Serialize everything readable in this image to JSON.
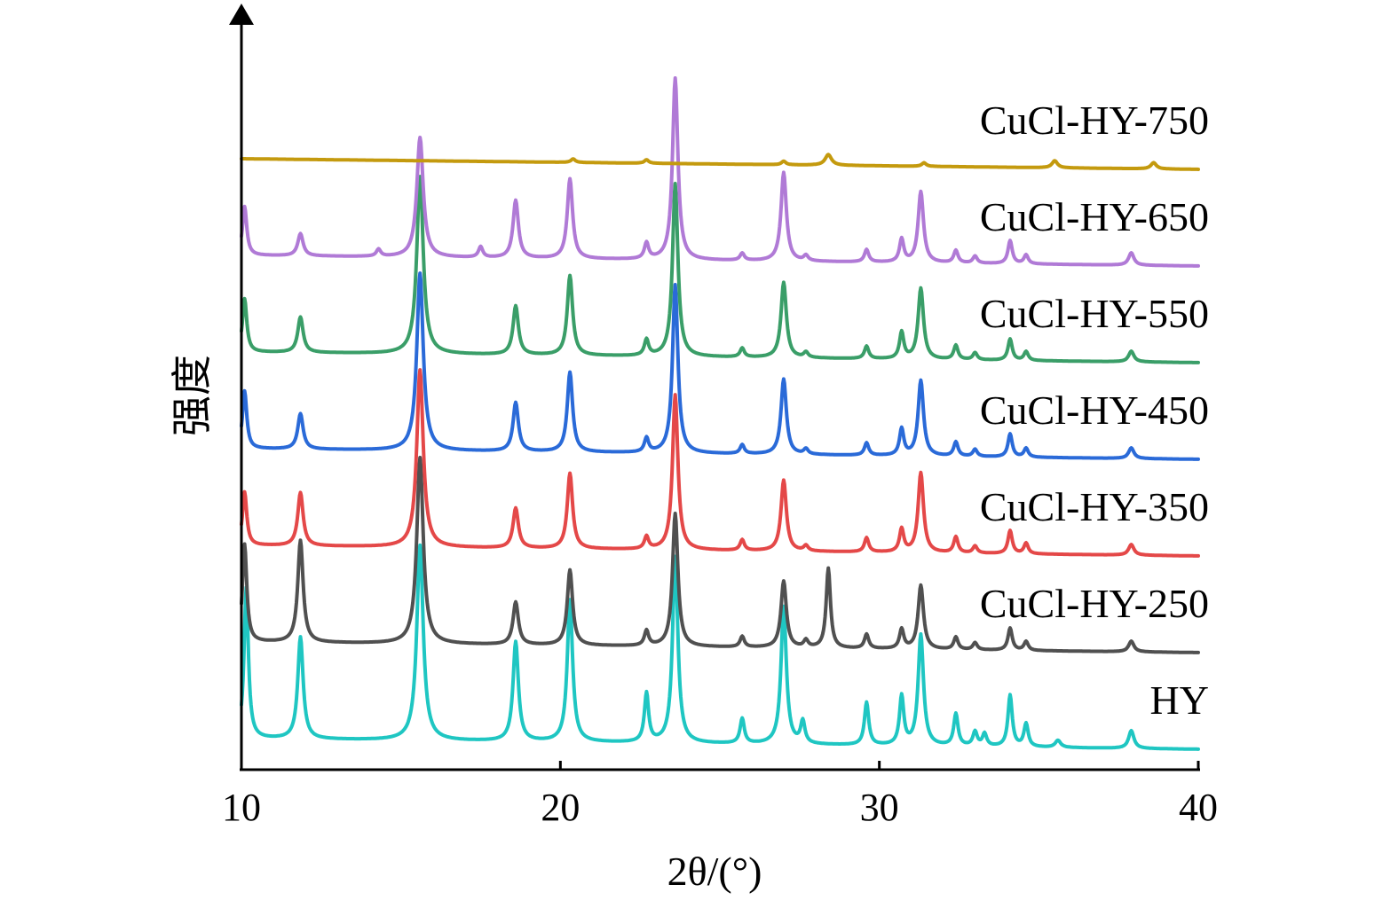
{
  "chart_data": {
    "type": "line",
    "title": "",
    "xlabel": "2θ/(°)",
    "ylabel": "强度",
    "xlim": [
      10,
      40
    ],
    "xticks": [
      10,
      20,
      30,
      40
    ],
    "xtick_labels": [
      "10",
      "20",
      "30",
      "40"
    ],
    "grid": false,
    "legend": "labels at right end of each trace",
    "series": [
      {
        "name": "HY",
        "color": "#1fc6c2",
        "baseline": 0,
        "peaks": [
          [
            10.15,
            170,
            0.08
          ],
          [
            11.85,
            115,
            0.1
          ],
          [
            15.6,
            220,
            0.12
          ],
          [
            18.6,
            112,
            0.1
          ],
          [
            20.3,
            160,
            0.1
          ],
          [
            22.7,
            55,
            0.08
          ],
          [
            23.6,
            210,
            0.1
          ],
          [
            25.7,
            28,
            0.08
          ],
          [
            27.0,
            155,
            0.1
          ],
          [
            27.6,
            25,
            0.08
          ],
          [
            29.6,
            48,
            0.08
          ],
          [
            30.7,
            55,
            0.08
          ],
          [
            31.3,
            125,
            0.1
          ],
          [
            32.4,
            36,
            0.08
          ],
          [
            33.0,
            16,
            0.08
          ],
          [
            33.3,
            14,
            0.08
          ],
          [
            34.1,
            58,
            0.08
          ],
          [
            34.6,
            26,
            0.08
          ],
          [
            35.6,
            8,
            0.1
          ],
          [
            37.9,
            20,
            0.1
          ]
        ]
      },
      {
        "name": "CuCl-HY-250",
        "color": "#505050",
        "baseline": 1,
        "peaks": [
          [
            10.1,
            110,
            0.08
          ],
          [
            11.85,
            115,
            0.1
          ],
          [
            15.6,
            210,
            0.12
          ],
          [
            18.6,
            48,
            0.1
          ],
          [
            20.3,
            85,
            0.1
          ],
          [
            22.7,
            17,
            0.08
          ],
          [
            23.6,
            150,
            0.1
          ],
          [
            25.7,
            12,
            0.08
          ],
          [
            27.0,
            75,
            0.1
          ],
          [
            27.7,
            8,
            0.08
          ],
          [
            28.4,
            90,
            0.08
          ],
          [
            29.6,
            16,
            0.08
          ],
          [
            30.7,
            22,
            0.08
          ],
          [
            31.3,
            72,
            0.1
          ],
          [
            32.4,
            14,
            0.08
          ],
          [
            33.0,
            8,
            0.08
          ],
          [
            34.1,
            25,
            0.08
          ],
          [
            34.6,
            10,
            0.08
          ],
          [
            37.9,
            12,
            0.1
          ]
        ]
      },
      {
        "name": "CuCl-HY-350",
        "color": "#e44848",
        "baseline": 2,
        "peaks": [
          [
            10.1,
            60,
            0.08
          ],
          [
            11.85,
            60,
            0.1
          ],
          [
            15.6,
            200,
            0.12
          ],
          [
            18.6,
            45,
            0.1
          ],
          [
            20.3,
            85,
            0.1
          ],
          [
            22.7,
            14,
            0.08
          ],
          [
            23.6,
            175,
            0.1
          ],
          [
            25.7,
            12,
            0.08
          ],
          [
            27.0,
            80,
            0.1
          ],
          [
            27.7,
            6,
            0.08
          ],
          [
            29.6,
            16,
            0.08
          ],
          [
            30.7,
            26,
            0.08
          ],
          [
            31.3,
            90,
            0.1
          ],
          [
            32.4,
            18,
            0.08
          ],
          [
            33.0,
            8,
            0.08
          ],
          [
            34.1,
            26,
            0.08
          ],
          [
            34.6,
            12,
            0.08
          ],
          [
            37.9,
            12,
            0.1
          ]
        ]
      },
      {
        "name": "CuCl-HY-450",
        "color": "#2a6ad8",
        "baseline": 3,
        "peaks": [
          [
            10.1,
            65,
            0.08
          ],
          [
            11.85,
            40,
            0.1
          ],
          [
            15.6,
            200,
            0.12
          ],
          [
            18.6,
            55,
            0.1
          ],
          [
            20.3,
            90,
            0.1
          ],
          [
            22.7,
            16,
            0.08
          ],
          [
            23.6,
            190,
            0.1
          ],
          [
            25.7,
            10,
            0.08
          ],
          [
            27.0,
            85,
            0.1
          ],
          [
            27.7,
            6,
            0.08
          ],
          [
            29.6,
            14,
            0.08
          ],
          [
            30.7,
            30,
            0.08
          ],
          [
            31.3,
            85,
            0.1
          ],
          [
            32.4,
            16,
            0.08
          ],
          [
            33.0,
            8,
            0.08
          ],
          [
            34.1,
            26,
            0.08
          ],
          [
            34.6,
            10,
            0.08
          ],
          [
            37.9,
            12,
            0.1
          ]
        ]
      },
      {
        "name": "CuCl-HY-550",
        "color": "#3a9e68",
        "baseline": 4,
        "peaks": [
          [
            10.1,
            60,
            0.08
          ],
          [
            11.85,
            40,
            0.1
          ],
          [
            15.6,
            200,
            0.12
          ],
          [
            18.6,
            55,
            0.1
          ],
          [
            20.3,
            90,
            0.1
          ],
          [
            22.7,
            18,
            0.08
          ],
          [
            23.6,
            195,
            0.1
          ],
          [
            25.7,
            10,
            0.08
          ],
          [
            27.0,
            85,
            0.1
          ],
          [
            27.7,
            6,
            0.08
          ],
          [
            29.6,
            14,
            0.08
          ],
          [
            30.7,
            30,
            0.08
          ],
          [
            31.3,
            80,
            0.1
          ],
          [
            32.4,
            16,
            0.08
          ],
          [
            33.0,
            8,
            0.08
          ],
          [
            34.1,
            24,
            0.08
          ],
          [
            34.6,
            10,
            0.08
          ],
          [
            37.9,
            12,
            0.1
          ]
        ]
      },
      {
        "name": "CuCl-HY-650",
        "color": "#b07ad6",
        "baseline": 5,
        "peaks": [
          [
            10.1,
            55,
            0.08
          ],
          [
            11.85,
            25,
            0.1
          ],
          [
            14.3,
            8,
            0.08
          ],
          [
            15.6,
            135,
            0.12
          ],
          [
            17.5,
            12,
            0.08
          ],
          [
            18.6,
            65,
            0.1
          ],
          [
            20.3,
            90,
            0.1
          ],
          [
            22.7,
            18,
            0.08
          ],
          [
            23.6,
            205,
            0.1
          ],
          [
            25.7,
            8,
            0.08
          ],
          [
            27.0,
            100,
            0.1
          ],
          [
            27.7,
            6,
            0.08
          ],
          [
            29.6,
            14,
            0.08
          ],
          [
            30.7,
            26,
            0.08
          ],
          [
            31.3,
            80,
            0.1
          ],
          [
            32.4,
            14,
            0.08
          ],
          [
            33.0,
            8,
            0.08
          ],
          [
            34.1,
            26,
            0.08
          ],
          [
            34.6,
            10,
            0.08
          ],
          [
            37.9,
            14,
            0.1
          ]
        ]
      },
      {
        "name": "CuCl-HY-750",
        "color": "#c49a0e",
        "baseline": 6,
        "peaks": [
          [
            20.4,
            4,
            0.08
          ],
          [
            22.7,
            4,
            0.08
          ],
          [
            27.0,
            4,
            0.08
          ],
          [
            28.4,
            12,
            0.12
          ],
          [
            31.4,
            4,
            0.08
          ],
          [
            35.5,
            8,
            0.1
          ],
          [
            38.6,
            7,
            0.1
          ]
        ]
      }
    ]
  }
}
